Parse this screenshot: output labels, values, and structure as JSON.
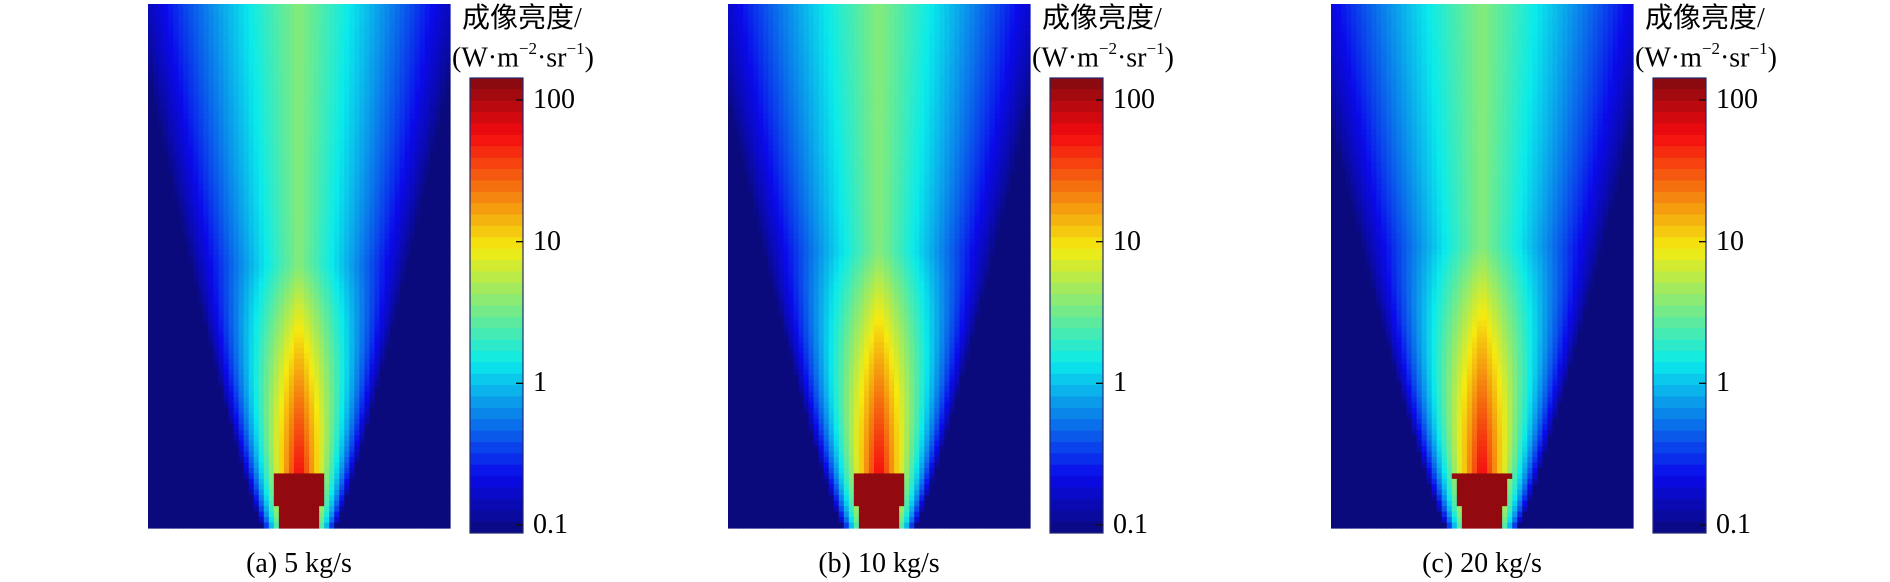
{
  "chart_data": [
    {
      "type": "heatmap",
      "caption": "(a) 5 kg/s",
      "colorbar": {
        "title": "成像亮度/",
        "unit_prefix": "(W·m",
        "unit_exp1": "−2",
        "unit_mid": "·sr",
        "unit_exp2": "−1",
        "unit_suffix": ")",
        "scale": "log",
        "range": [
          0.1,
          100
        ],
        "ticks": [
          {
            "value": 100,
            "label": "100"
          },
          {
            "value": 10,
            "label": "10"
          },
          {
            "value": 1,
            "label": "1"
          },
          {
            "value": 0.1,
            "label": "0.1"
          }
        ],
        "colormap": "jet"
      },
      "plume": {
        "background_level": 0.1,
        "core_peak": 100,
        "core_length_fraction": 0.55,
        "spread_fraction": 1.0
      }
    },
    {
      "type": "heatmap",
      "caption": "(b) 10 kg/s",
      "colorbar": {
        "title": "成像亮度/",
        "unit_prefix": "(W·m",
        "unit_exp1": "−2",
        "unit_mid": "·sr",
        "unit_exp2": "−1",
        "unit_suffix": ")",
        "scale": "log",
        "range": [
          0.1,
          100
        ],
        "ticks": [
          {
            "value": 100,
            "label": "100"
          },
          {
            "value": 10,
            "label": "10"
          },
          {
            "value": 1,
            "label": "1"
          },
          {
            "value": 0.1,
            "label": "0.1"
          }
        ],
        "colormap": "jet"
      },
      "plume": {
        "background_level": 0.1,
        "core_peak": 100,
        "core_length_fraction": 0.6,
        "spread_fraction": 1.05
      }
    },
    {
      "type": "heatmap",
      "caption": "(c) 20 kg/s",
      "colorbar": {
        "title": "成像亮度/",
        "unit_prefix": "(W·m",
        "unit_exp1": "−2",
        "unit_mid": "·sr",
        "unit_exp2": "−1",
        "unit_suffix": ")",
        "scale": "log",
        "range": [
          0.1,
          100
        ],
        "ticks": [
          {
            "value": 100,
            "label": "100"
          },
          {
            "value": 10,
            "label": "10"
          },
          {
            "value": 1,
            "label": "1"
          },
          {
            "value": 0.1,
            "label": "0.1"
          }
        ],
        "colormap": "jet"
      },
      "plume": {
        "background_level": 0.1,
        "core_peak": 100,
        "core_length_fraction": 0.62,
        "spread_fraction": 1.1
      }
    }
  ]
}
